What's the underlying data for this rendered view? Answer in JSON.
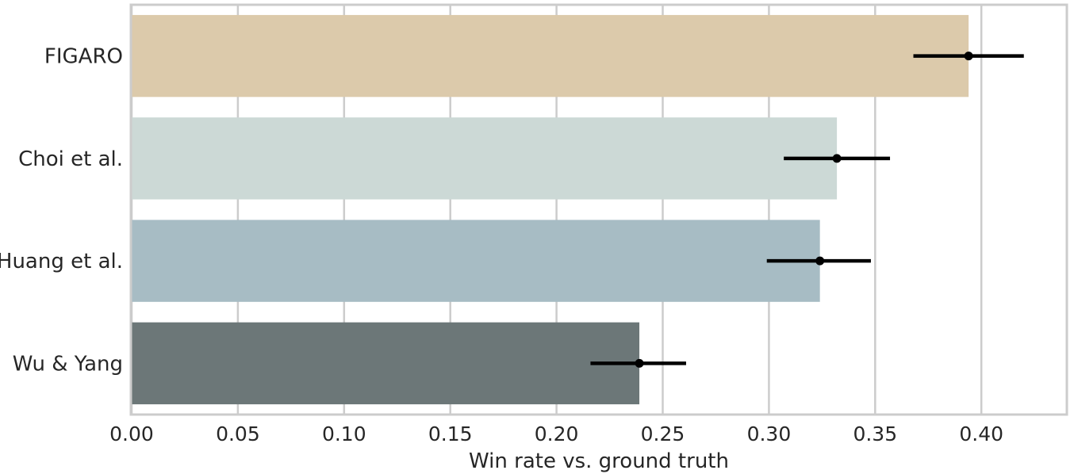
{
  "chart_data": {
    "type": "bar",
    "orientation": "horizontal",
    "categories": [
      "FIGARO",
      "Choi et al.",
      "Huang et al.",
      "Wu & Yang"
    ],
    "values": [
      0.394,
      0.332,
      0.324,
      0.239
    ],
    "error_low": [
      0.368,
      0.307,
      0.299,
      0.216
    ],
    "error_high": [
      0.42,
      0.357,
      0.348,
      0.261
    ],
    "colors": [
      "#dccaab",
      "#ccd9d6",
      "#a7bcc4",
      "#6c7778"
    ],
    "xlabel": "Win rate vs. ground truth",
    "ylabel": "",
    "title": "",
    "xlim": [
      0,
      0.44
    ],
    "xticks": [
      0.0,
      0.05,
      0.1,
      0.15,
      0.2,
      0.25,
      0.3,
      0.35,
      0.4
    ],
    "xtick_labels": [
      "0.00",
      "0.05",
      "0.10",
      "0.15",
      "0.20",
      "0.25",
      "0.30",
      "0.35",
      "0.40"
    ],
    "grid": true
  }
}
